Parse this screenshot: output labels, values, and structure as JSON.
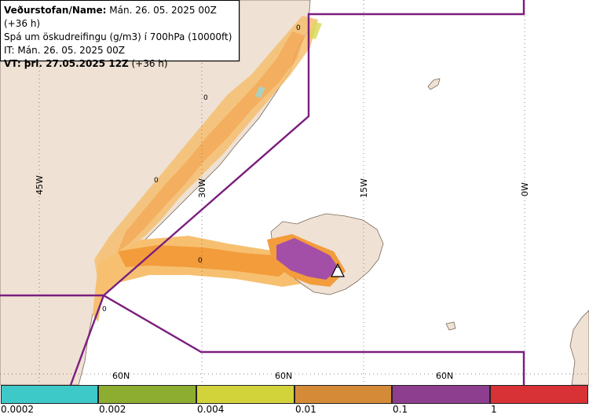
{
  "header": {
    "line1_bold": "Veðurstofan/Name:",
    "line1_rest": " Mán. 26. 05. 2025 00Z (+36 h)",
    "line2": "Spá um öskudreifingu (g/m3) í 700hPa (10000ft)",
    "line3": "IT: Mán. 26. 05. 2025 00Z",
    "line4_bold": "VT: þri. 27.05.2025 12Z",
    "line4_rest": " (+36 h)"
  },
  "map": {
    "longitude_labels": [
      "45W",
      "30W",
      "15W",
      "0W"
    ],
    "latitude_labels": [
      "60N",
      "60N",
      "60N"
    ],
    "contour_labels": [
      "0",
      "0",
      "0",
      "0",
      "0"
    ],
    "colors": {
      "land": "#efe1d4",
      "sea": "#ffffff",
      "boundary": "#7a1e7e",
      "ash_orange": "#f4a94a",
      "ash_purple": "#a34fa8"
    }
  },
  "legend": {
    "ticks": [
      "0.0002",
      "0.002",
      "0.004",
      "0.01",
      "0.1",
      "1"
    ],
    "colors": [
      "#3ec9c9",
      "#8cad2f",
      "#d2d23a",
      "#d58a37",
      "#8e3e8e",
      "#d83236"
    ]
  }
}
